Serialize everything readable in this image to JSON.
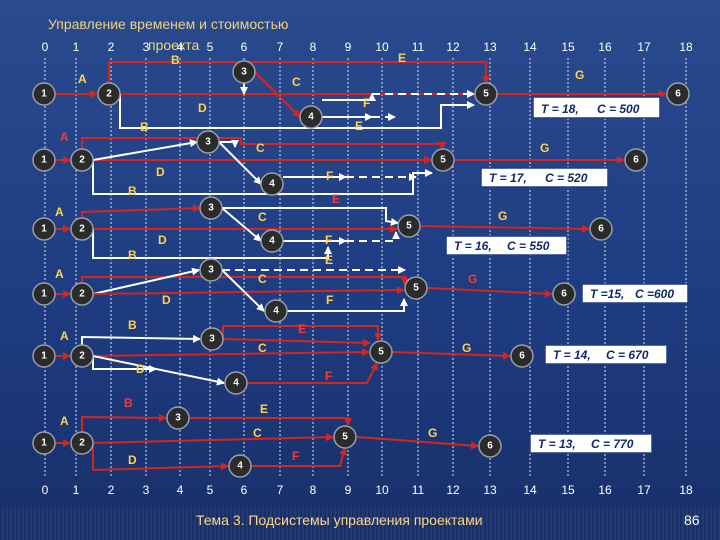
{
  "title": {
    "line1": "Управление временем и стоимостью",
    "line2": "проекта"
  },
  "footer": {
    "text": "Тема 3. Подсистемы управления проектами",
    "page": "86"
  },
  "axis": {
    "ticks_top": [
      "0",
      "1",
      "2",
      "3",
      "4",
      "5",
      "6",
      "7",
      "8",
      "9",
      "10",
      "11",
      "12",
      "13",
      "14",
      "15",
      "16",
      "17",
      "18"
    ],
    "ticks_bottom": [
      "0",
      "1",
      "2",
      "3",
      "4",
      "5",
      "6",
      "7",
      "8",
      "9",
      "10",
      "11",
      "12",
      "13",
      "14",
      "15",
      "16",
      "17",
      "18"
    ]
  },
  "colors": {
    "red_arrow": "#d4261f",
    "white_arrow": "#ffffff",
    "node_fill": "#2b2b2b",
    "yellow_label": "#ffd34d",
    "red_label": "#ff3a2a"
  },
  "scenarios": [
    {
      "result": {
        "T": "T = 18,",
        "C": "C = 500"
      }
    },
    {
      "result": {
        "T": "T = 17,",
        "C": "C = 520"
      }
    },
    {
      "result": {
        "T": "T = 16,",
        "C": "C = 550"
      }
    },
    {
      "result": {
        "T": "T =15,",
        "C": "C =600"
      }
    },
    {
      "result": {
        "T": "T = 14,",
        "C": "C = 670"
      }
    },
    {
      "result": {
        "T": "T = 13,",
        "C": "C = 770"
      }
    }
  ],
  "node_labels": [
    "1",
    "2",
    "3",
    "4",
    "5",
    "6"
  ],
  "activity_labels": {
    "A": "A",
    "B": "B",
    "C": "C",
    "D": "D",
    "E": "E",
    "F": "F",
    "G": "G"
  }
}
